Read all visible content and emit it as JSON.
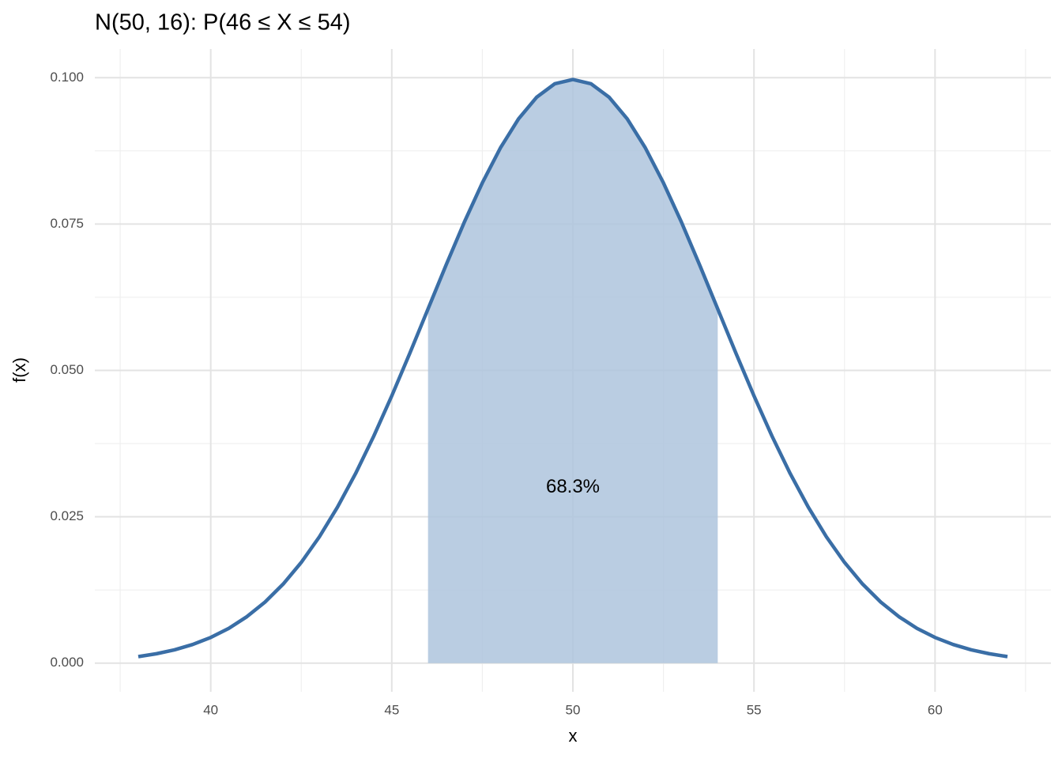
{
  "chart_data": {
    "type": "line",
    "title": "N(50, 16): P(46 ≤ X ≤ 54)",
    "x_label": "x",
    "y_label": "f(x)",
    "x": [
      38,
      38.5,
      39,
      39.5,
      40,
      40.5,
      41,
      41.5,
      42,
      42.5,
      43,
      43.5,
      44,
      44.5,
      45,
      45.5,
      46,
      46.5,
      47,
      47.5,
      48,
      48.5,
      49,
      49.5,
      50,
      50.5,
      51,
      51.5,
      52,
      52.5,
      53,
      53.5,
      54,
      54.5,
      55,
      55.5,
      56,
      56.5,
      57,
      57.5,
      58,
      58.5,
      59,
      59.5,
      60,
      60.5,
      61,
      61.5,
      62
    ],
    "series": [
      {
        "name": "density",
        "color": "#3a6ea6",
        "values": [
          0.00111,
          0.0016,
          0.00227,
          0.00318,
          0.00438,
          0.00594,
          0.00794,
          0.01043,
          0.0135,
          0.0172,
          0.02157,
          0.02664,
          0.03238,
          0.03875,
          0.04566,
          0.05297,
          0.06049,
          0.06802,
          0.07529,
          0.08204,
          0.08802,
          0.09297,
          0.09667,
          0.09897,
          0.0997,
          0.09897,
          0.09667,
          0.09297,
          0.08802,
          0.08204,
          0.07529,
          0.06802,
          0.06049,
          0.05297,
          0.04566,
          0.03875,
          0.03238,
          0.02664,
          0.02157,
          0.0172,
          0.0135,
          0.01043,
          0.00794,
          0.00594,
          0.00438,
          0.00318,
          0.00227,
          0.0016,
          0.00111
        ]
      }
    ],
    "area": {
      "color": "#aec4dd",
      "x": [
        46,
        46.5,
        47,
        47.5,
        48,
        48.5,
        49,
        49.5,
        50,
        50.5,
        51,
        51.5,
        52,
        52.5,
        53,
        53.5,
        54
      ],
      "values": [
        0.06049,
        0.06802,
        0.07529,
        0.08204,
        0.08802,
        0.09297,
        0.09667,
        0.09897,
        0.0997,
        0.09897,
        0.09667,
        0.09297,
        0.08802,
        0.08204,
        0.07529,
        0.06802,
        0.06049
      ]
    },
    "annotation": {
      "text": "68.3%",
      "x": 50,
      "y": 0.03
    },
    "xlim": [
      36.8,
      63.2
    ],
    "ylim": [
      -0.0049,
      0.1049
    ],
    "xticks": [
      40,
      45,
      50,
      55,
      60
    ],
    "yticks": [
      {
        "value": 0,
        "label": "0.000"
      },
      {
        "value": 0.025,
        "label": "0.025"
      },
      {
        "value": 0.05,
        "label": "0.050"
      },
      {
        "value": 0.075,
        "label": "0.075"
      },
      {
        "value": 0.1,
        "label": "0.100"
      }
    ],
    "grid": true
  }
}
